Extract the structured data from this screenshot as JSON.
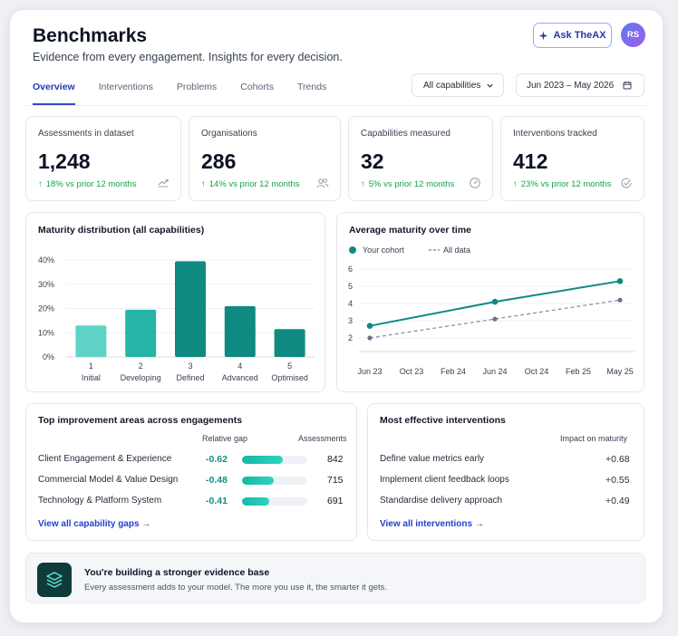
{
  "header": {
    "title": "Benchmarks",
    "subtitle": "Evidence from every engagement. Insights for every decision.",
    "ask_label": "Ask TheAX",
    "avatar_initials": "RS"
  },
  "tabs": [
    {
      "label": "Overview",
      "active": true
    },
    {
      "label": "Interventions",
      "active": false
    },
    {
      "label": "Problems",
      "active": false
    },
    {
      "label": "Cohorts",
      "active": false
    },
    {
      "label": "Trends",
      "active": false
    }
  ],
  "filters": {
    "capabilities": "All capabilities",
    "date_range": "Jun 2023 – May 2026"
  },
  "kpis": [
    {
      "label": "Assessments in dataset",
      "value": "1,248",
      "delta": "18% vs prior 12 months",
      "icon": "trend-up-icon"
    },
    {
      "label": "Organisations",
      "value": "286",
      "delta": "14% vs prior 12 months",
      "icon": "users-icon"
    },
    {
      "label": "Capabilities measured",
      "value": "32",
      "delta": "5% vs prior 12 months",
      "icon": "gauge-icon"
    },
    {
      "label": "Interventions tracked",
      "value": "412",
      "delta": "23% vs prior 12 months",
      "icon": "check-circle-icon"
    }
  ],
  "distribution": {
    "title": "Maturity distribution (all capabilities)"
  },
  "trend": {
    "title": "Average maturity over time",
    "legend_cohort": "Your cohort",
    "legend_all": "All data"
  },
  "gaps": {
    "title": "Top improvement areas across engagements",
    "col_gap": "Relative gap",
    "col_count": "Assessments",
    "rows": [
      {
        "label": "Client Engagement & Experience",
        "gap": "-0.62",
        "fraction": 0.62,
        "count": "842"
      },
      {
        "label": "Commercial Model & Value Design",
        "gap": "-0.48",
        "fraction": 0.48,
        "count": "715"
      },
      {
        "label": "Technology & Platform System",
        "gap": "-0.41",
        "fraction": 0.41,
        "count": "691"
      }
    ],
    "link": "View all capability gaps →"
  },
  "interventions": {
    "title": "Most effective interventions",
    "col_impact": "Impact on maturity",
    "rows": [
      {
        "label": "Define value metrics early",
        "impact": "+0.68"
      },
      {
        "label": "Implement client feedback loops",
        "impact": "+0.55"
      },
      {
        "label": "Standardise delivery approach",
        "impact": "+0.49"
      }
    ],
    "link": "View all interventions →"
  },
  "footer": {
    "title": "You're building a stronger evidence base",
    "subtitle": "Every assessment adds to your model. The more you use it, the smarter it gets."
  },
  "colors": {
    "accent": "#2c4ad6",
    "teal_dark": "#0f8a80",
    "teal_mid": "#26b5a8",
    "teal_light": "#5fd3c6",
    "positive": "#16a34a"
  },
  "chart_data": [
    {
      "type": "bar",
      "title": "Maturity distribution (all capabilities)",
      "categories": [
        "1 Initial",
        "2 Developing",
        "3 Defined",
        "4 Advanced",
        "5 Optimised"
      ],
      "tick_numbers": [
        "1",
        "2",
        "3",
        "4",
        "5"
      ],
      "tick_names": [
        "Initial",
        "Developing",
        "Defined",
        "Advanced",
        "Optimised"
      ],
      "values": [
        13,
        19.5,
        39.5,
        21,
        11.5
      ],
      "ylim": [
        0,
        40
      ],
      "yticks": [
        "0%",
        "10%",
        "20%",
        "30%",
        "40%"
      ],
      "grid": true
    },
    {
      "type": "line",
      "title": "Average maturity over time",
      "x": [
        "Jun 23",
        "Oct 23",
        "Feb 24",
        "Jun 24",
        "Oct 24",
        "Feb 25",
        "May 25"
      ],
      "ylim": [
        2,
        6
      ],
      "yticks": [
        "2",
        "3",
        "4",
        "5",
        "6"
      ],
      "grid": true,
      "legend": "top-left",
      "series": [
        {
          "name": "Your cohort",
          "points": [
            [
              0,
              2.7
            ],
            [
              3,
              4.1
            ],
            [
              6,
              5.3
            ]
          ],
          "style": "solid"
        },
        {
          "name": "All data",
          "points": [
            [
              0,
              2.0
            ],
            [
              3,
              3.1
            ],
            [
              6,
              4.2
            ]
          ],
          "style": "dashed"
        }
      ]
    }
  ]
}
